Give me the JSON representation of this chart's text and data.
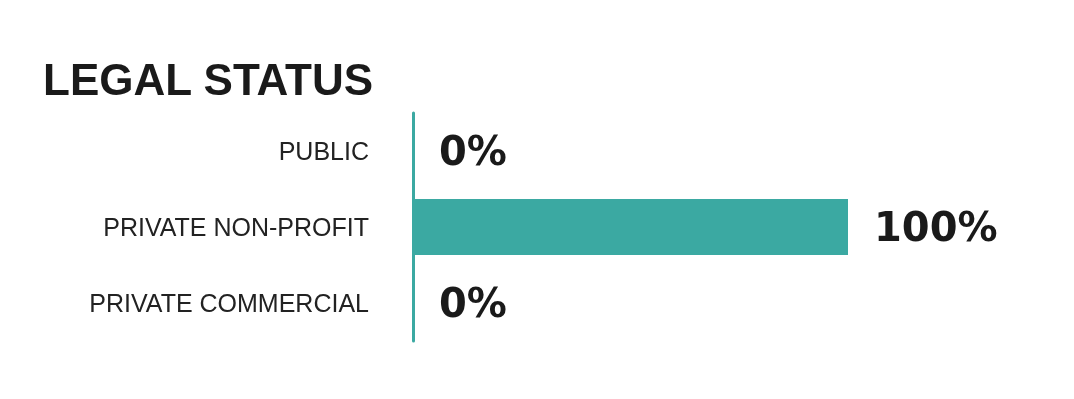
{
  "chart_data": {
    "type": "bar",
    "orientation": "horizontal",
    "title": "LEGAL STATUS",
    "categories": [
      "PUBLIC",
      "PRIVATE NON-PROFIT",
      "PRIVATE COMMERCIAL"
    ],
    "values": [
      0,
      100,
      0
    ],
    "color": "#3ba9a2",
    "value_labels": [
      "0%",
      "100%",
      "0%"
    ]
  }
}
